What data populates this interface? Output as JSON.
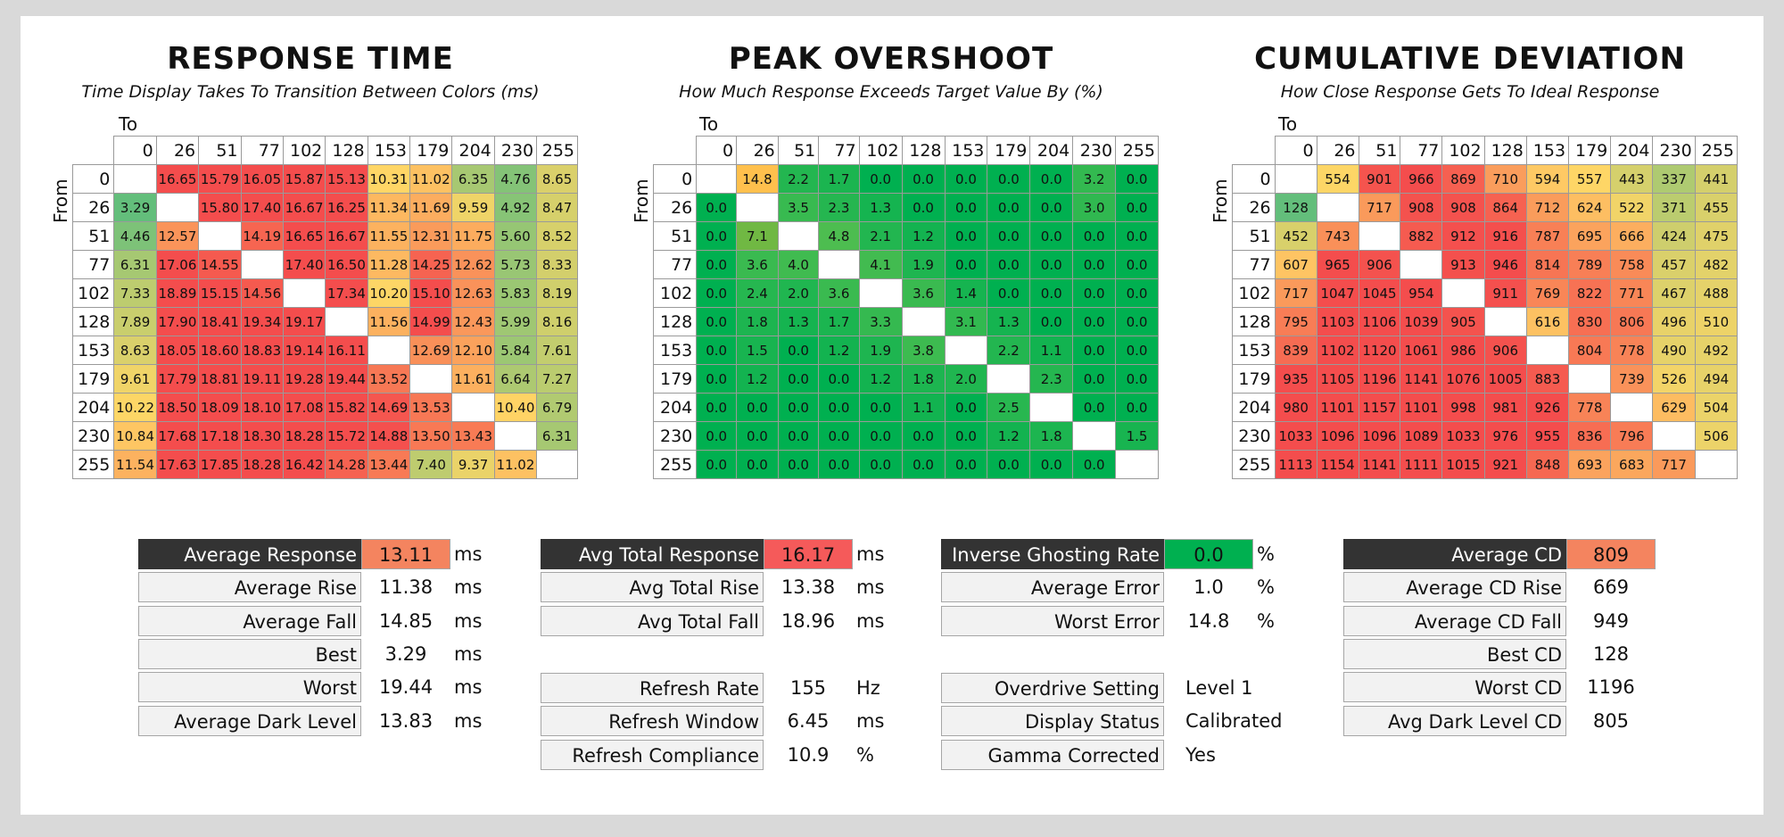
{
  "chart_data": [
    {
      "type": "heatmap",
      "title": "RESPONSE TIME",
      "subtitle": "Time Display Takes To Transition Between Colors (ms)",
      "xlabel": "To",
      "ylabel": "From",
      "categories": [
        "0",
        "26",
        "51",
        "77",
        "102",
        "128",
        "153",
        "179",
        "204",
        "230",
        "255"
      ],
      "values": [
        [
          "",
          "16.65",
          "15.79",
          "16.05",
          "15.87",
          "15.13",
          "10.31",
          "11.02",
          "6.35",
          "4.76",
          "8.65"
        ],
        [
          "3.29",
          "",
          "15.80",
          "17.40",
          "16.67",
          "16.25",
          "11.34",
          "11.69",
          "9.59",
          "4.92",
          "8.47"
        ],
        [
          "4.46",
          "12.57",
          "",
          "14.19",
          "16.65",
          "16.67",
          "11.55",
          "12.31",
          "11.75",
          "5.60",
          "8.52"
        ],
        [
          "6.31",
          "17.06",
          "14.55",
          "",
          "17.40",
          "16.50",
          "11.28",
          "14.25",
          "12.62",
          "5.73",
          "8.33"
        ],
        [
          "7.33",
          "18.89",
          "15.15",
          "14.56",
          "",
          "17.34",
          "10.20",
          "15.10",
          "12.63",
          "5.83",
          "8.19"
        ],
        [
          "7.89",
          "17.90",
          "18.41",
          "19.34",
          "19.17",
          "",
          "11.56",
          "14.99",
          "12.43",
          "5.99",
          "8.16"
        ],
        [
          "8.63",
          "18.05",
          "18.60",
          "18.83",
          "19.14",
          "16.11",
          "",
          "12.69",
          "12.10",
          "5.84",
          "7.61"
        ],
        [
          "9.61",
          "17.79",
          "18.81",
          "19.11",
          "19.28",
          "19.44",
          "13.52",
          "",
          "11.61",
          "6.64",
          "7.27"
        ],
        [
          "10.22",
          "18.50",
          "18.09",
          "18.10",
          "17.08",
          "15.82",
          "14.69",
          "13.53",
          "",
          "10.40",
          "6.79"
        ],
        [
          "10.84",
          "17.68",
          "17.18",
          "18.30",
          "18.28",
          "15.72",
          "14.88",
          "13.50",
          "13.43",
          "",
          "6.31"
        ],
        [
          "11.54",
          "17.63",
          "17.85",
          "18.28",
          "16.42",
          "14.28",
          "13.44",
          "7.40",
          "9.37",
          "11.02",
          ""
        ]
      ]
    },
    {
      "type": "heatmap",
      "title": "PEAK OVERSHOOT",
      "subtitle": "How Much Response Exceeds Target Value By (%)",
      "xlabel": "To",
      "ylabel": "From",
      "categories": [
        "0",
        "26",
        "51",
        "77",
        "102",
        "128",
        "153",
        "179",
        "204",
        "230",
        "255"
      ],
      "values": [
        [
          "",
          "14.8",
          "2.2",
          "1.7",
          "0.0",
          "0.0",
          "0.0",
          "0.0",
          "0.0",
          "3.2",
          "0.0"
        ],
        [
          "0.0",
          "",
          "3.5",
          "2.3",
          "1.3",
          "0.0",
          "0.0",
          "0.0",
          "0.0",
          "3.0",
          "0.0"
        ],
        [
          "0.0",
          "7.1",
          "",
          "4.8",
          "2.1",
          "1.2",
          "0.0",
          "0.0",
          "0.0",
          "0.0",
          "0.0"
        ],
        [
          "0.0",
          "3.6",
          "4.0",
          "",
          "4.1",
          "1.9",
          "0.0",
          "0.0",
          "0.0",
          "0.0",
          "0.0"
        ],
        [
          "0.0",
          "2.4",
          "2.0",
          "3.6",
          "",
          "3.6",
          "1.4",
          "0.0",
          "0.0",
          "0.0",
          "0.0"
        ],
        [
          "0.0",
          "1.8",
          "1.3",
          "1.7",
          "3.3",
          "",
          "3.1",
          "1.3",
          "0.0",
          "0.0",
          "0.0"
        ],
        [
          "0.0",
          "1.5",
          "0.0",
          "1.2",
          "1.9",
          "3.8",
          "",
          "2.2",
          "1.1",
          "0.0",
          "0.0"
        ],
        [
          "0.0",
          "1.2",
          "0.0",
          "0.0",
          "1.2",
          "1.8",
          "2.0",
          "",
          "2.3",
          "0.0",
          "0.0"
        ],
        [
          "0.0",
          "0.0",
          "0.0",
          "0.0",
          "0.0",
          "1.1",
          "0.0",
          "2.5",
          "",
          "0.0",
          "0.0"
        ],
        [
          "0.0",
          "0.0",
          "0.0",
          "0.0",
          "0.0",
          "0.0",
          "0.0",
          "1.2",
          "1.8",
          "",
          "1.5"
        ],
        [
          "0.0",
          "0.0",
          "0.0",
          "0.0",
          "0.0",
          "0.0",
          "0.0",
          "0.0",
          "0.0",
          "0.0",
          ""
        ]
      ]
    },
    {
      "type": "heatmap",
      "title": "CUMULATIVE DEVIATION",
      "subtitle": "How Close Response Gets To Ideal Response",
      "xlabel": "To",
      "ylabel": "From",
      "categories": [
        "0",
        "26",
        "51",
        "77",
        "102",
        "128",
        "153",
        "179",
        "204",
        "230",
        "255"
      ],
      "values": [
        [
          "",
          "554",
          "901",
          "966",
          "869",
          "710",
          "594",
          "557",
          "443",
          "337",
          "441"
        ],
        [
          "128",
          "",
          "717",
          "908",
          "908",
          "864",
          "712",
          "624",
          "522",
          "371",
          "455"
        ],
        [
          "452",
          "743",
          "",
          "882",
          "912",
          "916",
          "787",
          "695",
          "666",
          "424",
          "475"
        ],
        [
          "607",
          "965",
          "906",
          "",
          "913",
          "946",
          "814",
          "789",
          "758",
          "457",
          "482"
        ],
        [
          "717",
          "1047",
          "1045",
          "954",
          "",
          "911",
          "769",
          "822",
          "771",
          "467",
          "488"
        ],
        [
          "795",
          "1103",
          "1106",
          "1039",
          "905",
          "",
          "616",
          "830",
          "806",
          "496",
          "510"
        ],
        [
          "839",
          "1102",
          "1120",
          "1061",
          "986",
          "906",
          "",
          "804",
          "778",
          "490",
          "492"
        ],
        [
          "935",
          "1105",
          "1196",
          "1141",
          "1076",
          "1005",
          "883",
          "",
          "739",
          "526",
          "494"
        ],
        [
          "980",
          "1101",
          "1157",
          "1101",
          "998",
          "981",
          "926",
          "778",
          "",
          "629",
          "504"
        ],
        [
          "1033",
          "1096",
          "1096",
          "1089",
          "1033",
          "976",
          "955",
          "836",
          "796",
          "",
          "506"
        ],
        [
          "1113",
          "1154",
          "1141",
          "1111",
          "1015",
          "921",
          "848",
          "693",
          "683",
          "717",
          ""
        ]
      ]
    }
  ],
  "stats": {
    "response": [
      {
        "label": "Average Response",
        "value": "13.11",
        "unit": "ms",
        "highlight": "#f4845f",
        "dark": true
      },
      {
        "label": "Average Rise",
        "value": "11.38",
        "unit": "ms"
      },
      {
        "label": "Average Fall",
        "value": "14.85",
        "unit": "ms"
      },
      {
        "label": "Best",
        "value": "3.29",
        "unit": "ms"
      },
      {
        "label": "Worst",
        "value": "19.44",
        "unit": "ms"
      },
      {
        "label": "Average Dark Level",
        "value": "13.83",
        "unit": "ms"
      }
    ],
    "total": [
      {
        "label": "Avg Total Response",
        "value": "16.17",
        "unit": "ms",
        "highlight": "#f55a5a",
        "dark": true
      },
      {
        "label": "Avg Total Rise",
        "value": "13.38",
        "unit": "ms"
      },
      {
        "label": "Avg Total Fall",
        "value": "18.96",
        "unit": "ms"
      }
    ],
    "refresh": [
      {
        "label": "Refresh Rate",
        "value": "155",
        "unit": "Hz"
      },
      {
        "label": "Refresh Window",
        "value": "6.45",
        "unit": "ms"
      },
      {
        "label": "Refresh Compliance",
        "value": "10.9",
        "unit": "%"
      }
    ],
    "overshoot": [
      {
        "label": "Inverse Ghosting Rate",
        "value": "0.0",
        "unit": "%",
        "highlight": "#00b050",
        "dark": true
      },
      {
        "label": "Average Error",
        "value": "1.0",
        "unit": "%"
      },
      {
        "label": "Worst Error",
        "value": "14.8",
        "unit": "%"
      }
    ],
    "settings": [
      {
        "label": "Overdrive Setting",
        "value": "Level 1"
      },
      {
        "label": "Display Status",
        "value": "Calibrated"
      },
      {
        "label": "Gamma Corrected",
        "value": "Yes"
      }
    ],
    "cd": [
      {
        "label": "Average CD",
        "value": "809",
        "highlight": "#f4845f",
        "dark": true
      },
      {
        "label": "Average CD Rise",
        "value": "669"
      },
      {
        "label": "Average CD Fall",
        "value": "949"
      },
      {
        "label": "Best CD",
        "value": "128"
      },
      {
        "label": "Worst CD",
        "value": "1196"
      },
      {
        "label": "Avg Dark Level CD",
        "value": "805"
      }
    ]
  },
  "colors": {
    "green": "#00b050",
    "yellow": "#ffd966",
    "red": "#f44d4d",
    "dark_header": "#333333"
  }
}
